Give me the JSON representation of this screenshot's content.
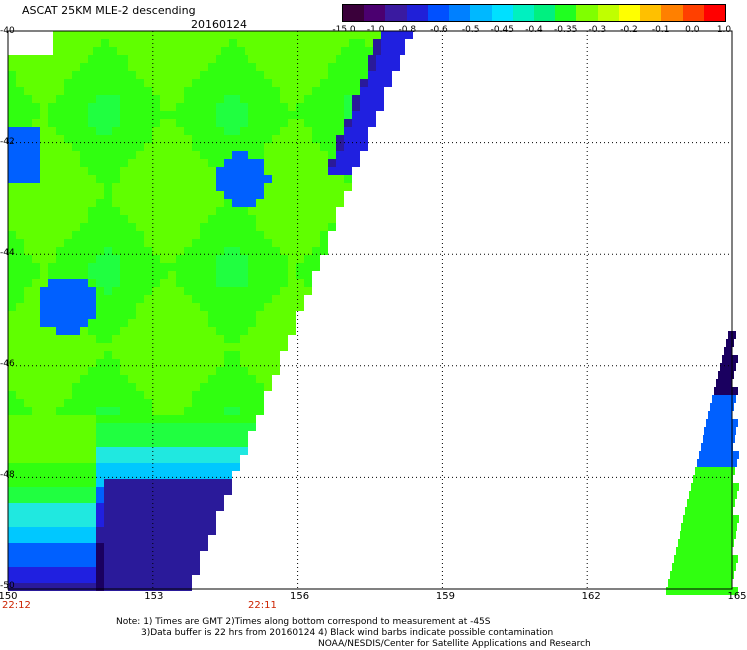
{
  "header": {
    "title": "ASCAT 25KM MLE-2 descending",
    "date": "20160124"
  },
  "colorbar": {
    "colors": [
      "#3a003a",
      "#4b0070",
      "#3a1aa0",
      "#2020d8",
      "#0050ff",
      "#0080ff",
      "#00b8ff",
      "#00e0ff",
      "#00f0c0",
      "#00f080",
      "#20ff20",
      "#80ff00",
      "#c0ff00",
      "#ffff00",
      "#ffc000",
      "#ff8000",
      "#ff4000",
      "#ff0000"
    ],
    "labels": [
      "-15.0",
      "-1.0",
      "-0.8",
      "-0.6",
      "-0.5",
      "-0.45",
      "-0.4",
      "-0.35",
      "-0.3",
      "-0.2",
      "-0.1",
      "0.0",
      "1.0"
    ]
  },
  "axes": {
    "lat_ticks": [
      "-40",
      "-42",
      "-44",
      "-46",
      "-48",
      "-50"
    ],
    "lon_ticks": [
      "150",
      "153",
      "156",
      "159",
      "162",
      "165"
    ]
  },
  "times": [
    "22:12",
    "22:11"
  ],
  "footer": {
    "line1": "Note: 1) Times are GMT 2)Times along bottom correspond to measurement at -45S",
    "line2": "3)Data buffer is 22 hrs from 20160124 4) Black wind barbs indicate possible contamination",
    "line3": "NOAA/NESDIS/Center for Satellite Applications and Research"
  }
}
